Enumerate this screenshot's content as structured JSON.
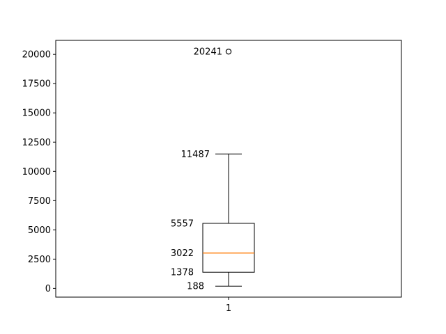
{
  "chart_data": {
    "type": "box",
    "categories": [
      "1"
    ],
    "ylim": [
      -750,
      21200
    ],
    "yticks": [
      0,
      2500,
      5000,
      7500,
      10000,
      12500,
      15000,
      17500,
      20000
    ],
    "ytick_labels": [
      "0",
      "2500",
      "5000",
      "7500",
      "10000",
      "12500",
      "15000",
      "17500",
      "20000"
    ],
    "xtick_labels": [
      "1"
    ],
    "grid": false,
    "boxes": [
      {
        "category": "1",
        "whisker_low": 188,
        "q1": 1378,
        "median": 3022,
        "q3": 5557,
        "whisker_high": 11487,
        "outliers": [
          20241
        ]
      }
    ],
    "data_labels": [
      "20241",
      "11487",
      "5557",
      "3022",
      "1378",
      "188"
    ],
    "colors": {
      "box": "#000000",
      "median": "#ff7f0e",
      "whisker": "#000000",
      "outlier": "#000000"
    }
  }
}
